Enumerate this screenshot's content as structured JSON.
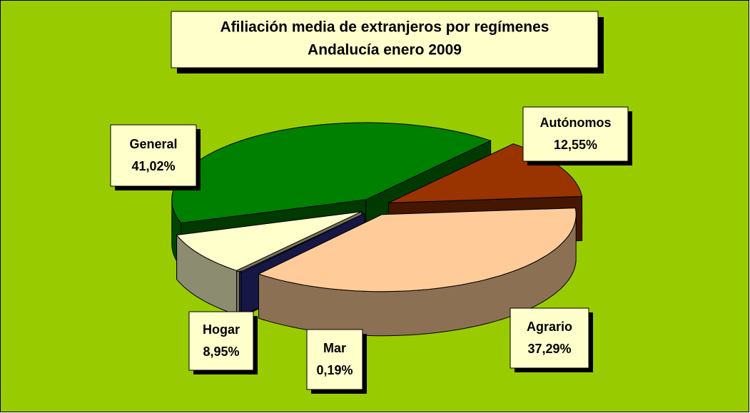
{
  "chart_data": {
    "type": "pie3d",
    "title": "Afiliación media de extranjeros por regímenes",
    "subtitle": "Andalucía enero 2009",
    "categories": [
      "Autónomos",
      "Agrario",
      "Mar",
      "Hogar",
      "General"
    ],
    "values": [
      12.55,
      37.29,
      0.19,
      8.95,
      41.02
    ],
    "value_labels": [
      "12,55%",
      "37,29%",
      "0,19%",
      "8,95%",
      "41,02%"
    ],
    "colors": [
      "#993300",
      "#FFCC99",
      "#333399",
      "#FFFFCC",
      "#008000"
    ],
    "background": "#99CC00"
  }
}
